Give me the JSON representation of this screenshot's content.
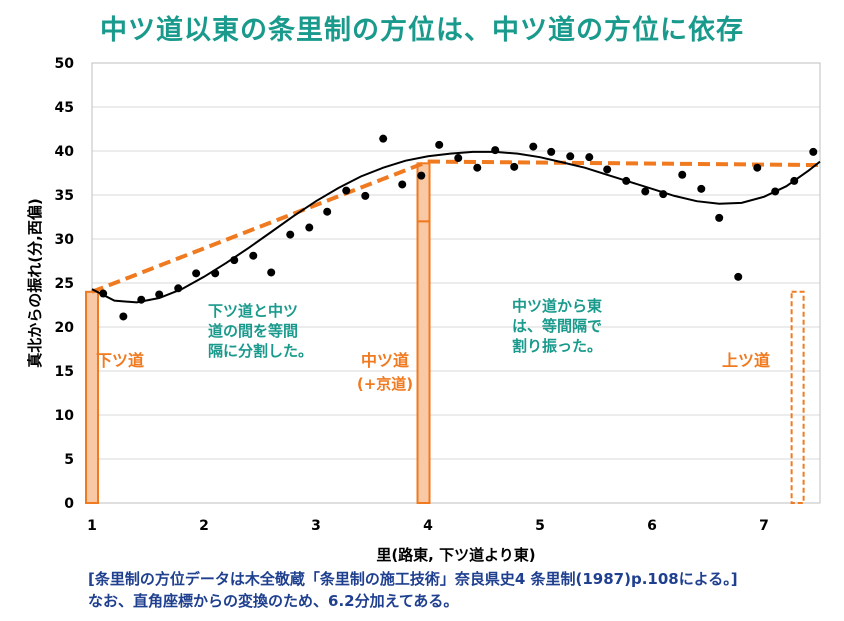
{
  "title": "中ツ道以東の条里制の方位は、中ツ道の方位に依存",
  "colors": {
    "title": "#1a9a8c",
    "annotation_text": "#1a9a8c",
    "orange": "#f07a20",
    "orange_fill": "#f8c9a4",
    "points": "#000000",
    "fit_curve": "#000000",
    "note": "#1f3f8f",
    "grid": "#d9d9d9"
  },
  "chart_data": {
    "type": "scatter",
    "title": "中ツ道以東の条里制の方位は、中ツ道の方位に依存",
    "xlabel": "里(路東, 下ツ道より東)",
    "ylabel": "真北からの振れ(分,西偏)",
    "xlim": [
      1,
      7.5
    ],
    "ylim": [
      0,
      50
    ],
    "xticks": [
      1,
      2,
      3,
      4,
      5,
      6,
      7
    ],
    "yticks": [
      0,
      5,
      10,
      15,
      20,
      25,
      30,
      35,
      40,
      45,
      50
    ],
    "grid": "horizontal",
    "points": [
      {
        "x": 1.1,
        "y": 23.8
      },
      {
        "x": 1.28,
        "y": 21.2
      },
      {
        "x": 1.44,
        "y": 23.1
      },
      {
        "x": 1.6,
        "y": 23.7
      },
      {
        "x": 1.77,
        "y": 24.4
      },
      {
        "x": 1.93,
        "y": 26.1
      },
      {
        "x": 2.1,
        "y": 26.1
      },
      {
        "x": 2.27,
        "y": 27.6
      },
      {
        "x": 2.44,
        "y": 28.1
      },
      {
        "x": 2.6,
        "y": 26.2
      },
      {
        "x": 2.77,
        "y": 30.5
      },
      {
        "x": 2.94,
        "y": 31.3
      },
      {
        "x": 3.1,
        "y": 33.1
      },
      {
        "x": 3.27,
        "y": 35.5
      },
      {
        "x": 3.44,
        "y": 34.9
      },
      {
        "x": 3.6,
        "y": 41.4
      },
      {
        "x": 3.77,
        "y": 36.2
      },
      {
        "x": 3.94,
        "y": 37.2
      },
      {
        "x": 4.1,
        "y": 40.7
      },
      {
        "x": 4.27,
        "y": 39.2
      },
      {
        "x": 4.44,
        "y": 38.1
      },
      {
        "x": 4.6,
        "y": 40.1
      },
      {
        "x": 4.77,
        "y": 38.2
      },
      {
        "x": 4.94,
        "y": 40.5
      },
      {
        "x": 5.1,
        "y": 39.9
      },
      {
        "x": 5.27,
        "y": 39.4
      },
      {
        "x": 5.44,
        "y": 39.3
      },
      {
        "x": 5.6,
        "y": 37.9
      },
      {
        "x": 5.77,
        "y": 36.6
      },
      {
        "x": 5.94,
        "y": 35.4
      },
      {
        "x": 6.1,
        "y": 35.1
      },
      {
        "x": 6.27,
        "y": 37.3
      },
      {
        "x": 6.44,
        "y": 35.7
      },
      {
        "x": 6.6,
        "y": 32.4
      },
      {
        "x": 6.77,
        "y": 25.7
      },
      {
        "x": 6.94,
        "y": 38.1
      },
      {
        "x": 7.1,
        "y": 35.4
      },
      {
        "x": 7.27,
        "y": 36.6
      },
      {
        "x": 7.44,
        "y": 39.9
      }
    ],
    "fit_curve": [
      [
        1.0,
        24.3
      ],
      [
        1.2,
        23.0
      ],
      [
        1.4,
        22.8
      ],
      [
        1.6,
        23.3
      ],
      [
        1.8,
        24.3
      ],
      [
        2.0,
        25.7
      ],
      [
        2.2,
        27.3
      ],
      [
        2.4,
        29.0
      ],
      [
        2.6,
        30.8
      ],
      [
        2.8,
        32.6
      ],
      [
        3.0,
        34.3
      ],
      [
        3.2,
        35.8
      ],
      [
        3.4,
        37.1
      ],
      [
        3.6,
        38.1
      ],
      [
        3.8,
        38.9
      ],
      [
        4.0,
        39.4
      ],
      [
        4.2,
        39.7
      ],
      [
        4.4,
        39.9
      ],
      [
        4.6,
        39.9
      ],
      [
        4.8,
        39.7
      ],
      [
        5.0,
        39.3
      ],
      [
        5.2,
        38.7
      ],
      [
        5.4,
        38.1
      ],
      [
        5.6,
        37.3
      ],
      [
        5.8,
        36.5
      ],
      [
        6.0,
        35.7
      ],
      [
        6.2,
        34.9
      ],
      [
        6.4,
        34.3
      ],
      [
        6.6,
        34.0
      ],
      [
        6.8,
        34.1
      ],
      [
        7.0,
        34.8
      ],
      [
        7.2,
        36.0
      ],
      [
        7.4,
        37.8
      ],
      [
        7.5,
        38.8
      ]
    ],
    "dashed_lines": [
      {
        "from": [
          1.0,
          24.0
        ],
        "to": [
          4.0,
          38.8
        ]
      },
      {
        "from": [
          4.0,
          38.8
        ],
        "to": [
          7.5,
          38.4
        ]
      }
    ],
    "bars": [
      {
        "x": 1.0,
        "y0": 0,
        "y1": 24.0,
        "style": "solid"
      },
      {
        "x": 3.96,
        "y0": 32.0,
        "y1": 38.6,
        "style": "solid"
      },
      {
        "x": 3.96,
        "y0": 0,
        "y1": 32.0,
        "style": "solid"
      },
      {
        "x": 7.3,
        "y0": 0,
        "y1": 24.0,
        "style": "dashed"
      }
    ],
    "labels": {
      "shimo": "下ツ道",
      "naka": "中ツ道",
      "naka_sub": "(+京道)",
      "kami": "上ツ道",
      "left_note": [
        "下ツ道と中ツ",
        "道の間を等間",
        "隔に分割した。"
      ],
      "right_note": [
        "中ツ道から東",
        "は、等間隔で",
        "割り振った。"
      ]
    }
  },
  "notes": {
    "line1": "[条里制の方位データは木全敬蔵「条里制の施工技術」奈良県史4 条里制(1987)p.108による。]",
    "line2": "なお、直角座標からの変換のため、6.2分加えてある。"
  }
}
